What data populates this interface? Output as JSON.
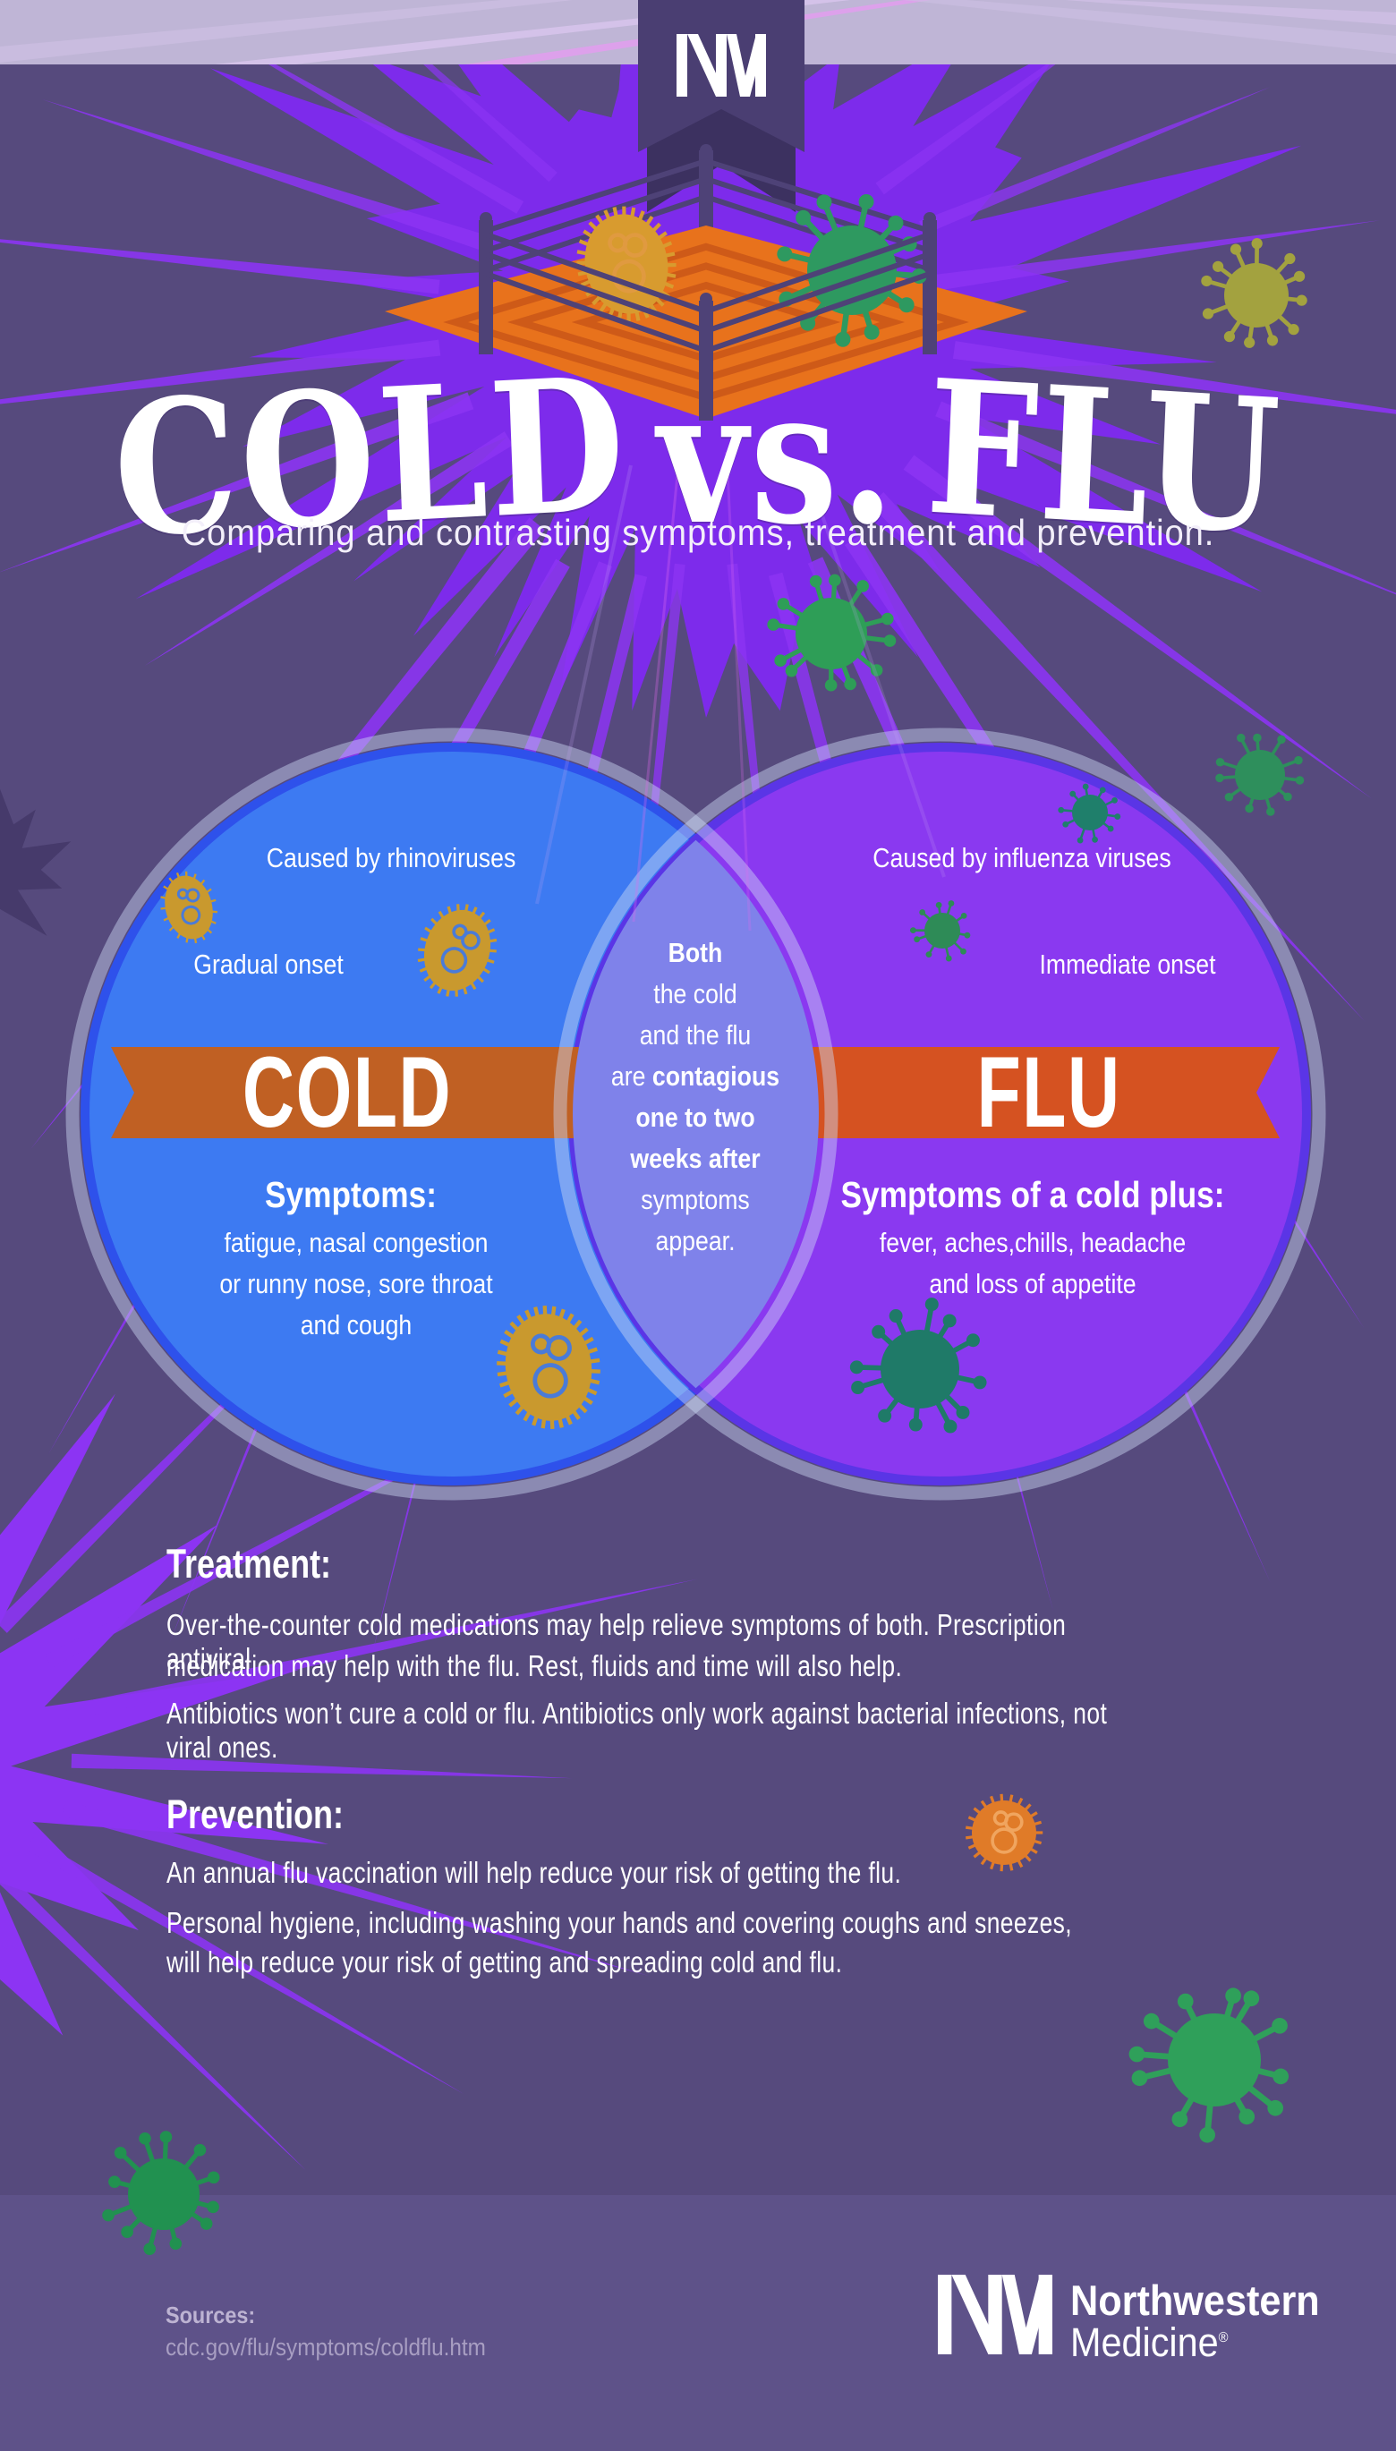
{
  "infographic": {
    "title": {
      "word1": "COLD",
      "vs": "vs.",
      "word2": "FLU"
    },
    "subtitle": "Comparing and contrasting symptoms, treatment and prevention.",
    "brand": {
      "monogram": "NM",
      "name_line1": "Northwestern",
      "name_line2": "Medicine",
      "registered_mark": "®"
    },
    "venn": {
      "cold": {
        "banner_label": "COLD",
        "caused_by": "Caused by rhinoviruses",
        "onset": "Gradual onset",
        "symptoms_heading": "Symptoms:",
        "symptoms_lines": [
          "fatigue, nasal congestion",
          "or runny nose, sore throat",
          "and cough"
        ]
      },
      "flu": {
        "banner_label": "FLU",
        "caused_by": "Caused by influenza viruses",
        "onset": "Immediate onset",
        "symptoms_heading": "Symptoms of a cold plus:",
        "symptoms_lines": [
          "fever, aches,chills, headache",
          "and loss of appetite"
        ]
      },
      "both": {
        "line1": "Both",
        "line2": "the cold",
        "line3": "and the flu",
        "line4_regular": "are ",
        "line4_bold": "contagious",
        "line5": "one to two",
        "line6": "weeks after",
        "line7": "symptoms",
        "line8": "appear."
      }
    },
    "treatment": {
      "heading": "Treatment:",
      "paragraph1_lines": [
        "Over-the-counter cold medications may help relieve symptoms of both. Prescription antiviral",
        "medication may help with the flu. Rest, fluids and time will also help."
      ],
      "paragraph2": "Antibiotics won’t cure a cold or flu. Antibiotics only work against bacterial infections, not viral ones."
    },
    "prevention": {
      "heading": "Prevention:",
      "paragraph1": "An annual flu vaccination will help reduce your risk of getting the flu.",
      "paragraph2_lines": [
        "Personal hygiene, including washing your hands and covering coughs and sneezes,",
        "will help reduce your risk of getting and spreading cold and flu."
      ]
    },
    "footer": {
      "sources_label": "Sources:",
      "source_url": "cdc.gov/flu/symptoms/coldflu.htm"
    },
    "colors": {
      "background": "#564A7D",
      "top_band": "#BFB5D6",
      "footer_band": "#5E5289",
      "burst": "#7D2BEB",
      "ray": "#8C34F3",
      "cold_circle_fill": "#3D7AF2",
      "cold_circle_border": "#2E51EB",
      "flu_circle_fill": "#8A39F0",
      "flu_circle_border": "#5A35E6",
      "overlap_fill": "#7F82EA",
      "cold_banner": "#C06023",
      "flu_banner": "#D55221",
      "ring_mat": "#E8721C",
      "ring_frame": "#4E4277",
      "text": "#FFFFFF"
    },
    "decorative_icons": [
      "nm-monogram-icon",
      "wrestling-ring-icon",
      "rhinovirus-icon",
      "influenza-virus-icon",
      "orange-virus-icon"
    ]
  }
}
